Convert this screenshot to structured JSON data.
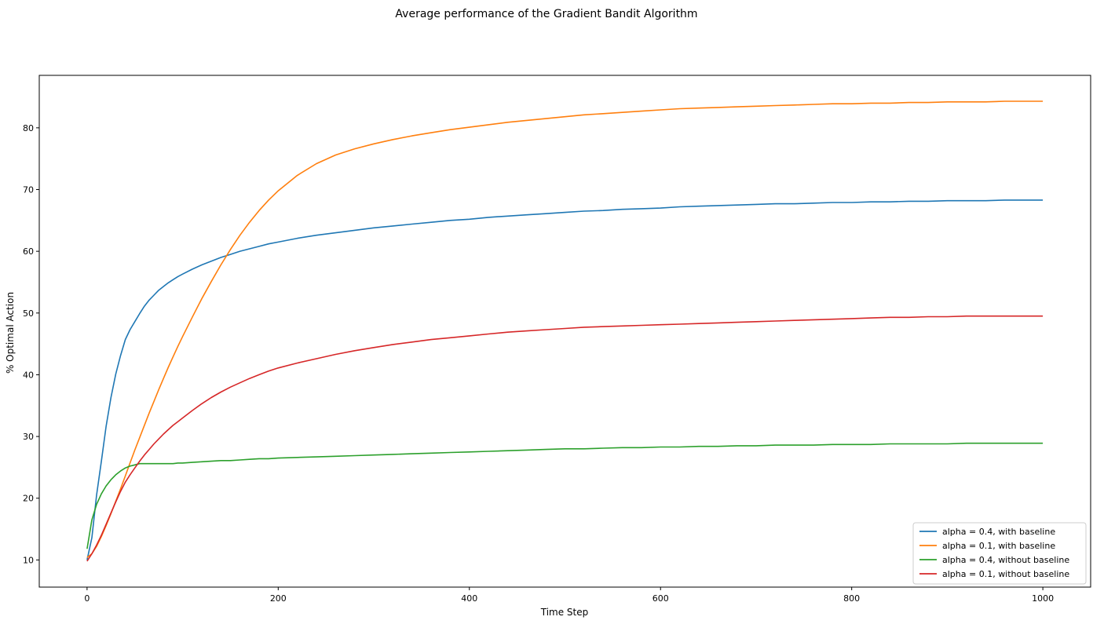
{
  "chart_data": {
    "type": "line",
    "title": "Average performance of the Gradient Bandit Algorithm",
    "xlabel": "Time Step",
    "ylabel": "% Optimal Action",
    "xlim": [
      -50,
      1050
    ],
    "ylim": [
      5.6,
      88.5
    ],
    "xticks": [
      0,
      200,
      400,
      600,
      800,
      1000
    ],
    "yticks": [
      10,
      20,
      30,
      40,
      50,
      60,
      70,
      80
    ],
    "grid": false,
    "legend_position": "lower right",
    "x": [
      0,
      5,
      10,
      15,
      20,
      25,
      30,
      35,
      40,
      45,
      50,
      55,
      60,
      65,
      70,
      75,
      80,
      85,
      90,
      95,
      100,
      110,
      120,
      130,
      140,
      150,
      160,
      170,
      180,
      190,
      200,
      220,
      240,
      260,
      280,
      300,
      320,
      340,
      360,
      380,
      400,
      420,
      440,
      460,
      480,
      500,
      520,
      540,
      560,
      580,
      600,
      620,
      640,
      660,
      680,
      700,
      720,
      740,
      760,
      780,
      800,
      820,
      840,
      860,
      880,
      900,
      920,
      940,
      960,
      980,
      1000
    ],
    "series": [
      {
        "name": "alpha = 0.4, with baseline",
        "color": "#1f77b4",
        "values": [
          10.0,
          13.6,
          20.5,
          26.0,
          31.7,
          36.3,
          40.1,
          43.1,
          45.7,
          47.3,
          48.6,
          49.9,
          51.1,
          52.1,
          52.9,
          53.7,
          54.3,
          54.9,
          55.4,
          55.9,
          56.3,
          57.1,
          57.8,
          58.4,
          59.0,
          59.5,
          60.0,
          60.4,
          60.8,
          61.2,
          61.5,
          62.1,
          62.6,
          63.0,
          63.4,
          63.8,
          64.1,
          64.4,
          64.7,
          65.0,
          65.2,
          65.5,
          65.7,
          65.9,
          66.1,
          66.3,
          66.5,
          66.6,
          66.8,
          66.9,
          67.0,
          67.2,
          67.3,
          67.4,
          67.5,
          67.6,
          67.7,
          67.7,
          67.8,
          67.9,
          67.9,
          68.0,
          68.0,
          68.1,
          68.1,
          68.2,
          68.2,
          68.2,
          68.3,
          68.3,
          68.3
        ]
      },
      {
        "name": "alpha = 0.1, with baseline",
        "color": "#ff7f0e",
        "values": [
          10.4,
          11.0,
          12.2,
          13.8,
          15.6,
          17.5,
          19.5,
          21.5,
          23.6,
          25.7,
          27.8,
          29.8,
          31.8,
          33.8,
          35.7,
          37.6,
          39.4,
          41.2,
          42.9,
          44.6,
          46.2,
          49.3,
          52.3,
          55.1,
          57.8,
          60.3,
          62.6,
          64.7,
          66.6,
          68.3,
          69.8,
          72.3,
          74.2,
          75.6,
          76.6,
          77.4,
          78.1,
          78.7,
          79.2,
          79.7,
          80.1,
          80.5,
          80.9,
          81.2,
          81.5,
          81.8,
          82.1,
          82.3,
          82.5,
          82.7,
          82.9,
          83.1,
          83.2,
          83.3,
          83.4,
          83.5,
          83.6,
          83.7,
          83.8,
          83.9,
          83.9,
          84.0,
          84.0,
          84.1,
          84.1,
          84.2,
          84.2,
          84.2,
          84.3,
          84.3,
          84.3
        ]
      },
      {
        "name": "alpha = 0.4, without baseline",
        "color": "#2ca02c",
        "values": [
          11.8,
          16.5,
          19.0,
          20.7,
          22.0,
          23.0,
          23.8,
          24.4,
          24.9,
          25.2,
          25.4,
          25.6,
          25.6,
          25.6,
          25.6,
          25.6,
          25.6,
          25.6,
          25.6,
          25.7,
          25.7,
          25.8,
          25.9,
          26.0,
          26.1,
          26.1,
          26.2,
          26.3,
          26.4,
          26.4,
          26.5,
          26.6,
          26.7,
          26.8,
          26.9,
          27.0,
          27.1,
          27.2,
          27.3,
          27.4,
          27.5,
          27.6,
          27.7,
          27.8,
          27.9,
          28.0,
          28.0,
          28.1,
          28.2,
          28.2,
          28.3,
          28.3,
          28.4,
          28.4,
          28.5,
          28.5,
          28.6,
          28.6,
          28.6,
          28.7,
          28.7,
          28.7,
          28.8,
          28.8,
          28.8,
          28.8,
          28.9,
          28.9,
          28.9,
          28.9,
          28.9
        ]
      },
      {
        "name": "alpha = 0.1, without baseline",
        "color": "#d62728",
        "values": [
          9.8,
          11.0,
          12.4,
          14.0,
          15.8,
          17.6,
          19.4,
          21.1,
          22.6,
          23.8,
          24.9,
          26.0,
          27.0,
          27.9,
          28.8,
          29.6,
          30.4,
          31.1,
          31.8,
          32.4,
          33.0,
          34.2,
          35.3,
          36.3,
          37.2,
          38.0,
          38.7,
          39.4,
          40.0,
          40.6,
          41.1,
          41.9,
          42.6,
          43.3,
          43.9,
          44.4,
          44.9,
          45.3,
          45.7,
          46.0,
          46.3,
          46.6,
          46.9,
          47.1,
          47.3,
          47.5,
          47.7,
          47.8,
          47.9,
          48.0,
          48.1,
          48.2,
          48.3,
          48.4,
          48.5,
          48.6,
          48.7,
          48.8,
          48.9,
          49.0,
          49.1,
          49.2,
          49.3,
          49.3,
          49.4,
          49.4,
          49.5,
          49.5,
          49.5,
          49.5,
          49.5
        ]
      }
    ]
  }
}
